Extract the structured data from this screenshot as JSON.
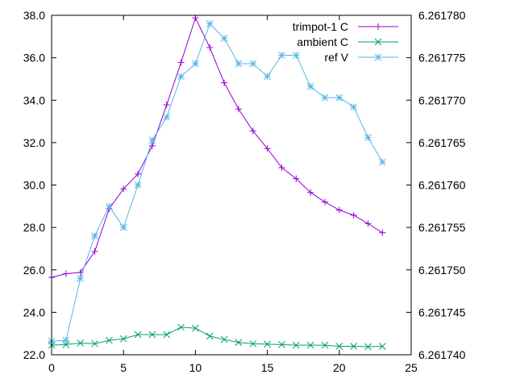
{
  "chart_data": {
    "type": "line",
    "title": "",
    "xlabel": "",
    "ylabel": "",
    "y2label": "",
    "xlim": [
      0,
      25
    ],
    "ylim": [
      22.0,
      38.0
    ],
    "y2lim": [
      6.26174,
      6.26178
    ],
    "xticks": [
      "0",
      "5",
      "10",
      "15",
      "20",
      "25"
    ],
    "yticks": [
      "22.0",
      "24.0",
      "26.0",
      "28.0",
      "30.0",
      "32.0",
      "34.0",
      "36.0",
      "38.0"
    ],
    "y2ticks": [
      "6.261740",
      "6.261745",
      "6.261750",
      "6.261755",
      "6.261760",
      "6.261765",
      "6.261770",
      "6.261775",
      "6.261780"
    ],
    "grid": false,
    "legend_position": "top-right",
    "x": [
      0,
      1,
      2,
      3,
      4,
      5,
      6,
      7,
      8,
      9,
      10,
      11,
      12,
      13,
      14,
      15,
      16,
      17,
      18,
      19,
      20,
      21,
      22,
      23
    ],
    "series": [
      {
        "name": "trimpot-1 C",
        "axis": "y1",
        "color": "#9400d3",
        "marker": "plus",
        "values": [
          25.65,
          25.82,
          25.88,
          26.87,
          28.88,
          29.82,
          30.52,
          31.85,
          33.78,
          35.78,
          37.88,
          36.48,
          34.82,
          33.58,
          32.55,
          31.72,
          30.82,
          30.3,
          29.65,
          29.2,
          28.82,
          28.58,
          28.18,
          27.75
        ]
      },
      {
        "name": "ambient C",
        "axis": "y1",
        "color": "#009e73",
        "marker": "x",
        "values": [
          22.45,
          22.48,
          22.55,
          22.52,
          22.68,
          22.75,
          22.95,
          22.95,
          22.95,
          23.3,
          23.25,
          22.88,
          22.72,
          22.58,
          22.52,
          22.5,
          22.48,
          22.45,
          22.45,
          22.45,
          22.4,
          22.4,
          22.38,
          22.4
        ]
      },
      {
        "name": "ref V",
        "axis": "y2",
        "color": "#56b4e9",
        "marker": "star",
        "values": [
          6.2617416,
          6.2617417,
          6.261749,
          6.261754,
          6.2617575,
          6.261755,
          6.26176,
          6.2617653,
          6.261768,
          6.2617728,
          6.2617743,
          6.261779,
          6.2617773,
          6.2617743,
          6.2617743,
          6.2617728,
          6.2617753,
          6.2617753,
          6.2617716,
          6.2617703,
          6.2617703,
          6.2617692,
          6.2617656,
          6.2617627
        ]
      }
    ]
  }
}
